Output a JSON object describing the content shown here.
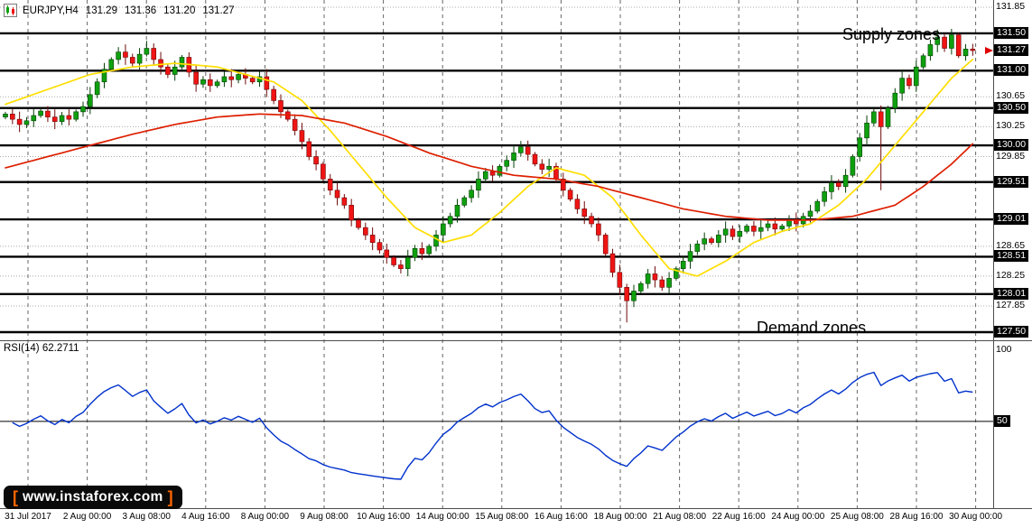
{
  "header": {
    "symbol": "EURJPY,H4",
    "open": "131.29",
    "high": "131.36",
    "low": "131.20",
    "close": "131.27"
  },
  "annotations": {
    "supply": "Supply zones",
    "demand": "Demand zones"
  },
  "rsi_header": {
    "name": "RSI(14)",
    "value": "62.2711"
  },
  "logo": {
    "bracket_left": "[",
    "text": "www.instaforex.com",
    "bracket_right": "]"
  },
  "colors": {
    "background": "#FFFFFF",
    "bull": "#0EA00E",
    "bull_border": "#063F06",
    "bear": "#F01414",
    "bear_border": "#6E0808",
    "ma_fast": "#FFDE00",
    "ma_slow": "#DD1F00",
    "rsi": "#0031CC",
    "zone_line": "#000000",
    "grid": "#ABABAB",
    "separator": "#666666",
    "box_bg": "#000000",
    "box_fg": "#FFFFFF",
    "border": "#4D4D4D",
    "arrow": "#E00000"
  },
  "chart_data": [
    {
      "type": "candlestick",
      "title": "EURJPY,H4",
      "symbol": "EURJPY",
      "timeframe": "H4",
      "current_bar": {
        "open": 131.29,
        "high": 131.36,
        "low": 131.2,
        "close": 131.27
      },
      "current_price": 131.27,
      "y_range": [
        127.4,
        131.95
      ],
      "supply_demand_lines": [
        131.5,
        131.0,
        130.5,
        130.0,
        129.51,
        129.01,
        128.51,
        128.01,
        127.5
      ],
      "grid_lines": [
        131.85,
        130.65,
        130.25,
        129.85,
        128.65,
        128.25,
        127.85
      ],
      "y_ticks": [
        {
          "text": "131.85",
          "price": 131.85,
          "boxed": false
        },
        {
          "text": "131.50",
          "price": 131.5,
          "boxed": true
        },
        {
          "text": "131.27",
          "price": 131.27,
          "boxed": true
        },
        {
          "text": "131.00",
          "price": 131.0,
          "boxed": true
        },
        {
          "text": "130.65",
          "price": 130.65,
          "boxed": false
        },
        {
          "text": "130.50",
          "price": 130.5,
          "boxed": true
        },
        {
          "text": "130.25",
          "price": 130.25,
          "boxed": false
        },
        {
          "text": "130.00",
          "price": 130.0,
          "boxed": true
        },
        {
          "text": "129.85",
          "price": 129.85,
          "boxed": false
        },
        {
          "text": "129.51",
          "price": 129.51,
          "boxed": true
        },
        {
          "text": "129.01",
          "price": 129.01,
          "boxed": true
        },
        {
          "text": "128.65",
          "price": 128.65,
          "boxed": false
        },
        {
          "text": "128.51",
          "price": 128.51,
          "boxed": true
        },
        {
          "text": "128.25",
          "price": 128.25,
          "boxed": false
        },
        {
          "text": "128.01",
          "price": 128.01,
          "boxed": true
        },
        {
          "text": "127.85",
          "price": 127.85,
          "boxed": false
        },
        {
          "text": "127.50",
          "price": 127.5,
          "boxed": true
        }
      ],
      "x_ticks": [
        "31 Jul 2017",
        "2 Aug 00:00",
        "3 Aug 08:00",
        "4 Aug 16:00",
        "8 Aug 00:00",
        "9 Aug 08:00",
        "10 Aug 16:00",
        "14 Aug 00:00",
        "15 Aug 08:00",
        "16 Aug 16:00",
        "18 Aug 00:00",
        "21 Aug 08:00",
        "22 Aug 16:00",
        "24 Aug 00:00",
        "25 Aug 08:00",
        "28 Aug 16:00",
        "30 Aug 00:00"
      ],
      "first_open": 130.38,
      "closes": [
        130.42,
        130.35,
        130.28,
        130.33,
        130.4,
        130.46,
        130.38,
        130.32,
        130.4,
        130.35,
        130.45,
        130.52,
        130.68,
        130.85,
        131.02,
        131.15,
        131.25,
        131.18,
        131.1,
        131.22,
        131.3,
        131.15,
        131.05,
        130.95,
        131.05,
        131.18,
        130.98,
        130.82,
        130.88,
        130.8,
        130.85,
        130.92,
        130.88,
        130.95,
        130.9,
        130.85,
        130.92,
        130.75,
        130.6,
        130.45,
        130.35,
        130.2,
        130.05,
        129.85,
        129.75,
        129.55,
        129.4,
        129.3,
        129.2,
        129.0,
        128.9,
        128.8,
        128.7,
        128.6,
        128.5,
        128.4,
        128.35,
        128.5,
        128.62,
        128.55,
        128.65,
        128.8,
        128.95,
        129.05,
        129.2,
        129.3,
        129.4,
        129.55,
        129.65,
        129.6,
        129.72,
        129.8,
        129.9,
        129.98,
        129.88,
        129.75,
        129.68,
        129.72,
        129.55,
        129.4,
        129.28,
        129.15,
        129.05,
        128.95,
        128.8,
        128.55,
        128.3,
        128.1,
        127.92,
        128.05,
        128.15,
        128.28,
        128.2,
        128.1,
        128.22,
        128.35,
        128.45,
        128.58,
        128.68,
        128.75,
        128.7,
        128.8,
        128.88,
        128.78,
        128.85,
        128.92,
        128.85,
        128.9,
        128.95,
        128.88,
        128.92,
        129.0,
        128.95,
        129.05,
        129.12,
        129.25,
        129.38,
        129.5,
        129.45,
        129.6,
        129.85,
        130.1,
        130.3,
        130.45,
        130.25,
        130.5,
        130.7,
        130.9,
        130.8,
        131.05,
        131.2,
        131.35,
        131.45,
        131.3,
        131.48,
        131.2,
        131.29,
        131.27
      ],
      "wick_overrides": [
        {
          "index": 20,
          "high": 131.4
        },
        {
          "index": 73,
          "high": 130.06
        },
        {
          "index": 88,
          "low": 127.63
        },
        {
          "index": 124,
          "low": 129.4
        },
        {
          "index": 134,
          "high": 131.56
        },
        {
          "index": 137,
          "high": 131.36,
          "low": 131.2
        }
      ],
      "moving_averages": [
        {
          "name": "MA fast",
          "color": "#FFDE00",
          "points": [
            [
              0,
              130.55
            ],
            [
              6,
              130.75
            ],
            [
              12,
              130.95
            ],
            [
              18,
              131.05
            ],
            [
              24,
              131.1
            ],
            [
              30,
              131.05
            ],
            [
              34,
              130.95
            ],
            [
              38,
              130.85
            ],
            [
              42,
              130.6
            ],
            [
              46,
              130.2
            ],
            [
              50,
              129.75
            ],
            [
              54,
              129.3
            ],
            [
              58,
              128.9
            ],
            [
              62,
              128.7
            ],
            [
              66,
              128.8
            ],
            [
              70,
              129.1
            ],
            [
              74,
              129.45
            ],
            [
              78,
              129.7
            ],
            [
              82,
              129.6
            ],
            [
              86,
              129.3
            ],
            [
              90,
              128.8
            ],
            [
              94,
              128.35
            ],
            [
              98,
              128.25
            ],
            [
              102,
              128.45
            ],
            [
              106,
              128.7
            ],
            [
              110,
              128.85
            ],
            [
              114,
              128.95
            ],
            [
              118,
              129.2
            ],
            [
              122,
              129.55
            ],
            [
              126,
              130.0
            ],
            [
              130,
              130.45
            ],
            [
              134,
              130.9
            ],
            [
              137,
              131.15
            ]
          ]
        },
        {
          "name": "MA slow",
          "color": "#DD1F00",
          "points": [
            [
              0,
              129.7
            ],
            [
              6,
              129.85
            ],
            [
              12,
              130.0
            ],
            [
              18,
              130.15
            ],
            [
              24,
              130.28
            ],
            [
              30,
              130.38
            ],
            [
              36,
              130.42
            ],
            [
              42,
              130.4
            ],
            [
              48,
              130.3
            ],
            [
              54,
              130.12
            ],
            [
              60,
              129.9
            ],
            [
              66,
              129.72
            ],
            [
              72,
              129.6
            ],
            [
              78,
              129.55
            ],
            [
              84,
              129.45
            ],
            [
              90,
              129.3
            ],
            [
              96,
              129.15
            ],
            [
              102,
              129.05
            ],
            [
              108,
              129.0
            ],
            [
              114,
              129.0
            ],
            [
              120,
              129.05
            ],
            [
              126,
              129.2
            ],
            [
              130,
              129.45
            ],
            [
              134,
              129.75
            ],
            [
              137,
              130.02
            ]
          ]
        }
      ]
    },
    {
      "type": "line",
      "title": "RSI(14)",
      "indicator": "RSI",
      "period": 14,
      "current_value": "62.2711",
      "levels": [
        50
      ],
      "y_range": [
        0,
        100
      ],
      "color": "#0031CC",
      "y_ticks": [
        {
          "text": "100",
          "value": 100,
          "boxed": false
        },
        {
          "text": "50",
          "value": 50,
          "boxed": true
        }
      ]
    }
  ]
}
